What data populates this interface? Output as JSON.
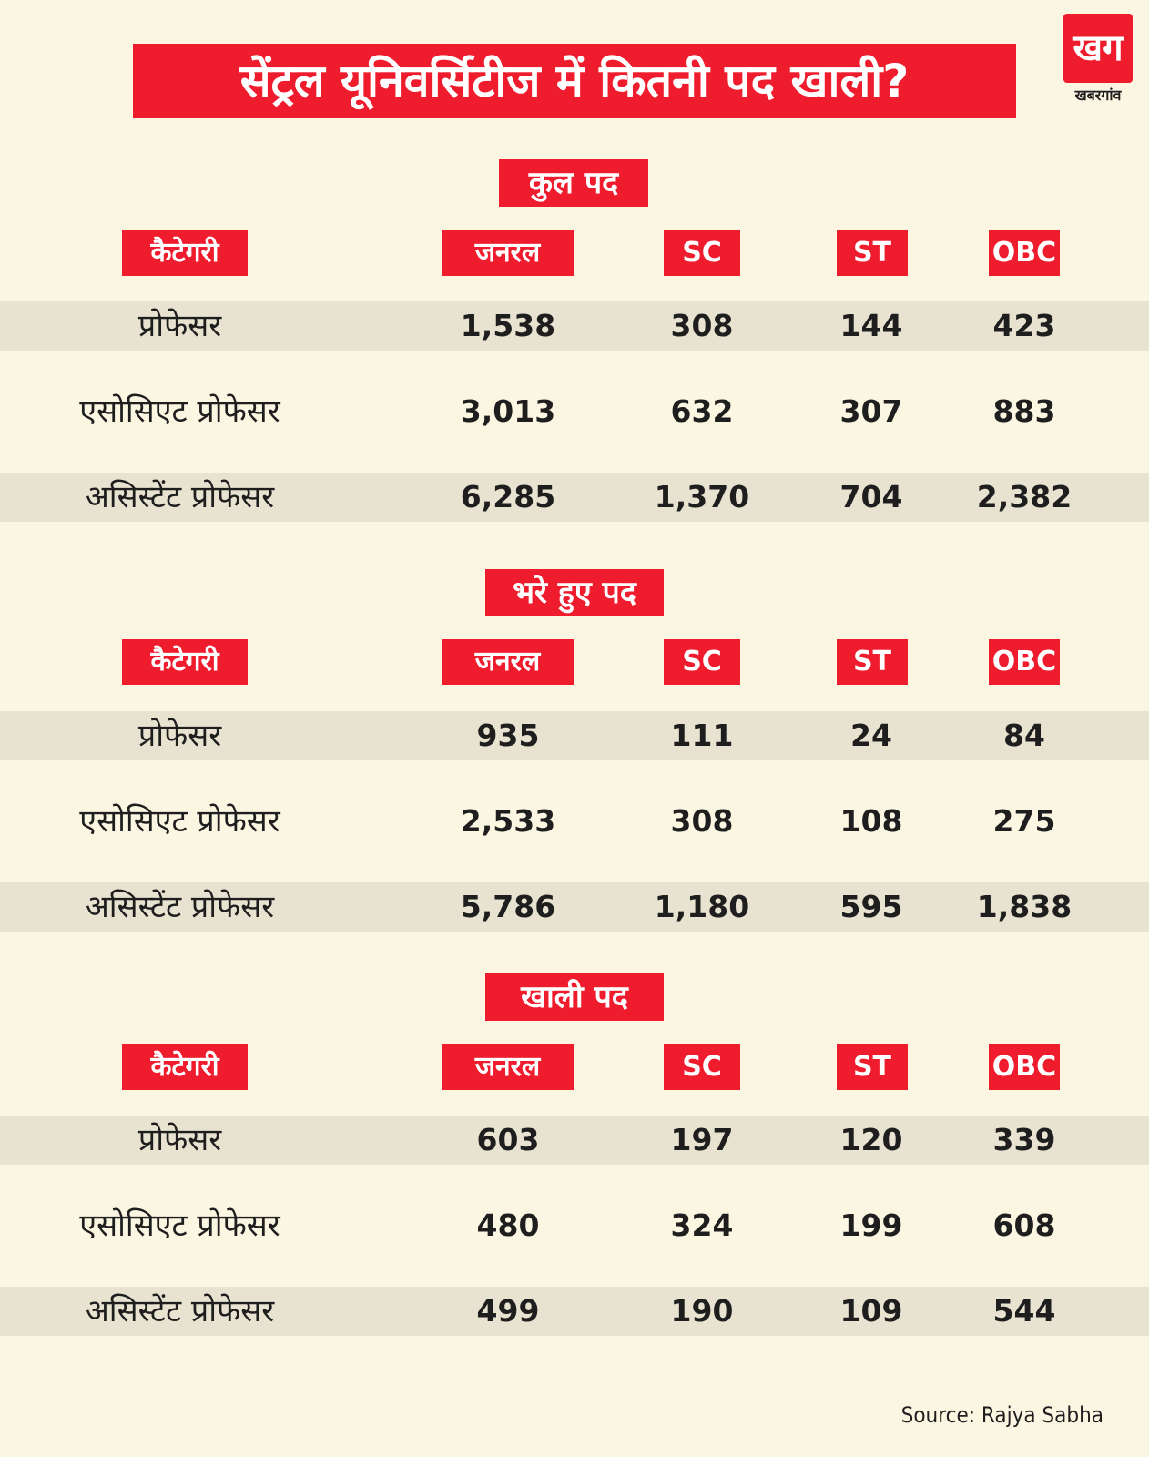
{
  "title": "सेंट्रल यूनिवर्सिटीज में कितनी पद खाली?",
  "logo": {
    "mark": "खग",
    "text": "खबरगांव"
  },
  "colors": {
    "accent": "#ee1c2d",
    "background": "#fbf6e2",
    "row_shade": "#e8e3d1"
  },
  "source": "Source: Rajya Sabha",
  "chart_data": [
    {
      "type": "table",
      "title": "कुल पद",
      "columns": [
        "कैटेगरी",
        "जनरल",
        "SC",
        "ST",
        "OBC"
      ],
      "rows": [
        [
          "प्रोफेसर",
          "1,538",
          "308",
          "144",
          "423"
        ],
        [
          "एसोसिएट प्रोफेसर",
          "3,013",
          "632",
          "307",
          "883"
        ],
        [
          "असिस्टेंट प्रोफेसर",
          "6,285",
          "1,370",
          "704",
          "2,382"
        ]
      ]
    },
    {
      "type": "table",
      "title": "भरे हुए पद",
      "columns": [
        "कैटेगरी",
        "जनरल",
        "SC",
        "ST",
        "OBC"
      ],
      "rows": [
        [
          "प्रोफेसर",
          "935",
          "111",
          "24",
          "84"
        ],
        [
          "एसोसिएट प्रोफेसर",
          "2,533",
          "308",
          "108",
          "275"
        ],
        [
          "असिस्टेंट प्रोफेसर",
          "5,786",
          "1,180",
          "595",
          "1,838"
        ]
      ]
    },
    {
      "type": "table",
      "title": "खाली पद",
      "columns": [
        "कैटेगरी",
        "जनरल",
        "SC",
        "ST",
        "OBC"
      ],
      "rows": [
        [
          "प्रोफेसर",
          "603",
          "197",
          "120",
          "339"
        ],
        [
          "एसोसिएट प्रोफेसर",
          "480",
          "324",
          "199",
          "608"
        ],
        [
          "असिस्टेंट प्रोफेसर",
          "499",
          "190",
          "109",
          "544"
        ]
      ]
    }
  ]
}
